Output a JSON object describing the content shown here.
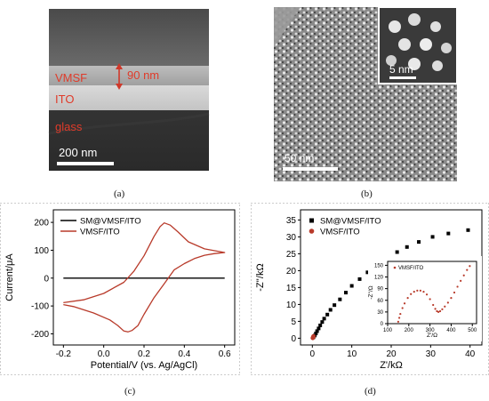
{
  "panel_a": {
    "caption": "(a)",
    "labels": {
      "vmsf": "VMSF",
      "thickness": "90 nm",
      "ito": "ITO",
      "glass": "glass",
      "scale": "200 nm"
    }
  },
  "panel_b": {
    "caption": "(b)",
    "inset_scale": "5 nm",
    "scale": "50 nm"
  },
  "panel_c": {
    "caption": "(c)"
  },
  "panel_d": {
    "caption": "(d)"
  },
  "chart_data": [
    {
      "type": "line",
      "panel": "c",
      "xlabel": "Potential/V (vs. Ag/AgCl)",
      "ylabel": "Current/μA",
      "xlim": [
        -0.25,
        0.65
      ],
      "ylim": [
        -240,
        245
      ],
      "xticks": [
        -0.2,
        0.0,
        0.2,
        0.4,
        0.6
      ],
      "xtick_labels": [
        "-0.2",
        "0.0",
        "0.2",
        "0.4",
        "0.6"
      ],
      "yticks": [
        -200,
        -100,
        0,
        100,
        200
      ],
      "ytick_labels": [
        "-200",
        "-100",
        "0",
        "100",
        "200"
      ],
      "legend_position": "top-left",
      "series": [
        {
          "name": "SM@VMSF/ITO",
          "color": "#000000",
          "x": [
            -0.2,
            0.6
          ],
          "y": [
            0,
            0
          ]
        },
        {
          "name": "VMSF/ITO",
          "color": "#b83a2a",
          "x": [
            -0.2,
            -0.1,
            0.0,
            0.1,
            0.15,
            0.2,
            0.25,
            0.28,
            0.3,
            0.33,
            0.37,
            0.42,
            0.5,
            0.6,
            0.55,
            0.5,
            0.45,
            0.4,
            0.35,
            0.3,
            0.25,
            0.2,
            0.17,
            0.14,
            0.12,
            0.1,
            0.07,
            0.03,
            -0.05,
            -0.15,
            -0.2
          ],
          "y": [
            -88,
            -78,
            -55,
            -15,
            25,
            80,
            150,
            185,
            198,
            190,
            165,
            130,
            105,
            92,
            88,
            82,
            70,
            52,
            30,
            -20,
            -70,
            -130,
            -170,
            -188,
            -193,
            -190,
            -170,
            -150,
            -125,
            -102,
            -95
          ]
        }
      ]
    },
    {
      "type": "scatter",
      "panel": "d",
      "xlabel": "Z'/kΩ",
      "ylabel": "-Z''/kΩ",
      "xlim": [
        -3,
        43
      ],
      "ylim": [
        -2,
        38
      ],
      "xticks": [
        0,
        10,
        20,
        30,
        40
      ],
      "xtick_labels": [
        "0",
        "10",
        "20",
        "30",
        "40"
      ],
      "yticks": [
        0,
        5,
        10,
        15,
        20,
        25,
        30,
        35
      ],
      "ytick_labels": [
        "0",
        "5",
        "10",
        "15",
        "20",
        "25",
        "30",
        "35"
      ],
      "legend_position": "top-left",
      "series": [
        {
          "name": "SM@VMSF/ITO",
          "color": "#000000",
          "marker": "square",
          "x": [
            0.3,
            0.6,
            0.9,
            1.2,
            1.6,
            2.0,
            2.5,
            3.0,
            3.8,
            4.6,
            5.6,
            7.0,
            8.5,
            10.0,
            12.0,
            14.0,
            16.5,
            19.0,
            21.5,
            24.0,
            27.0,
            30.5,
            34.5,
            39.5
          ],
          "y": [
            0.3,
            0.8,
            1.4,
            2.1,
            2.9,
            3.8,
            4.8,
            5.8,
            7.0,
            8.4,
            9.8,
            11.5,
            13.5,
            15.5,
            17.5,
            19.5,
            21.3,
            23.5,
            25.5,
            27.0,
            28.5,
            30.0,
            31.0,
            32.0
          ]
        },
        {
          "name": "VMSF/ITO",
          "color": "#b83a2a",
          "marker": "circle",
          "x": [
            0.1,
            0.15,
            0.2,
            0.25,
            0.3
          ],
          "y": [
            0.05,
            0.15,
            0.3,
            0.45,
            0.6
          ]
        }
      ],
      "inset": {
        "xlabel": "Z'/Ω",
        "ylabel": "-Z''/Ω",
        "xlim": [
          100,
          520
        ],
        "ylim": [
          0,
          160
        ],
        "xticks": [
          100,
          200,
          300,
          400,
          500
        ],
        "xtick_labels": [
          "100",
          "200",
          "300",
          "400",
          "500"
        ],
        "yticks": [
          0,
          30,
          60,
          90,
          120,
          150
        ],
        "ytick_labels": [
          "0",
          "30",
          "60",
          "90",
          "120",
          "150"
        ],
        "legend": "VMSF/ITO",
        "series": {
          "name": "VMSF/ITO",
          "color": "#b83a2a",
          "x": [
            150,
            155,
            160,
            170,
            180,
            195,
            210,
            225,
            240,
            255,
            270,
            285,
            300,
            315,
            325,
            333,
            340,
            348,
            358,
            370,
            385,
            400,
            415,
            430,
            445,
            460,
            475,
            488
          ],
          "y": [
            5,
            15,
            25,
            40,
            52,
            66,
            76,
            82,
            85,
            85,
            82,
            75,
            63,
            48,
            38,
            32,
            30,
            32,
            37,
            44,
            54,
            66,
            80,
            95,
            110,
            124,
            138,
            148
          ]
        }
      }
    }
  ]
}
